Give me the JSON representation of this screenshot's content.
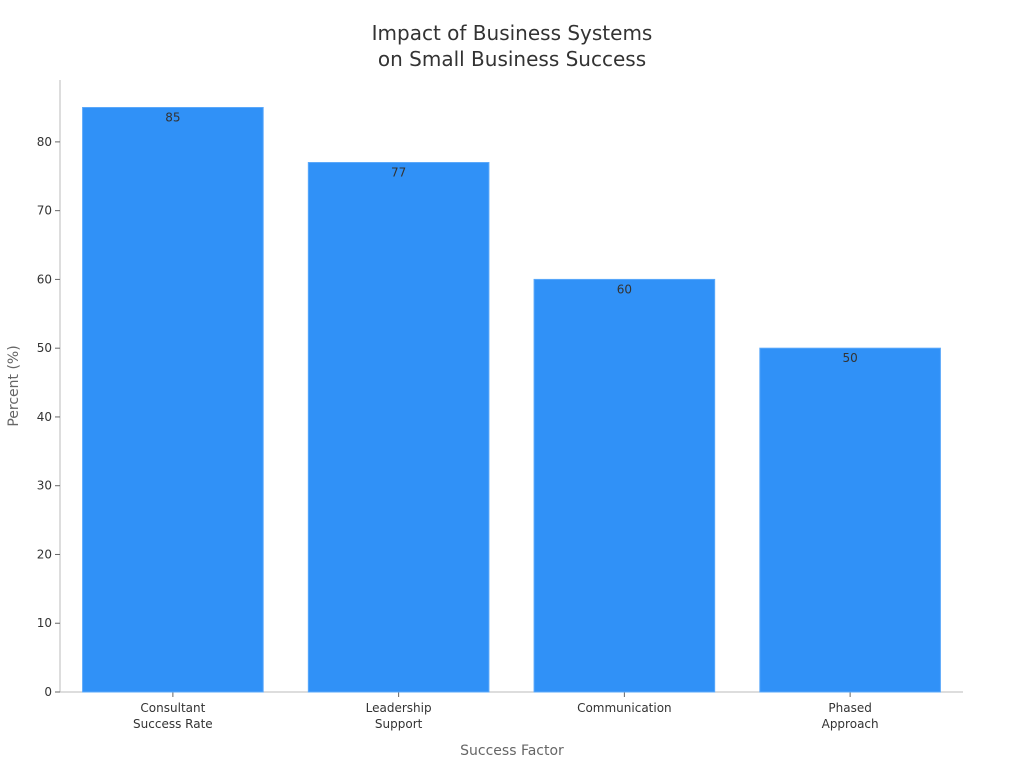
{
  "chart_data": {
    "type": "bar",
    "title": "Impact of Business Systems\non Small Business Success",
    "xlabel": "Success Factor",
    "ylabel": "Percent (%)",
    "categories": [
      "Consultant\nSuccess Rate",
      "Leadership\nSupport",
      "Communication",
      "Phased\nApproach"
    ],
    "values": [
      85,
      77,
      60,
      50
    ],
    "data_labels": [
      "85",
      "77",
      "60",
      "50"
    ],
    "ylim": [
      0,
      89
    ],
    "yticks": [
      0,
      10,
      20,
      30,
      40,
      50,
      60,
      70,
      80
    ],
    "grid": false,
    "legend": "none",
    "colors": {
      "bar": "#3091F7",
      "bar_edge": "#5AA8FA",
      "axis": "#BBBBBB",
      "text": "#333333",
      "axis_title": "#666666"
    }
  }
}
